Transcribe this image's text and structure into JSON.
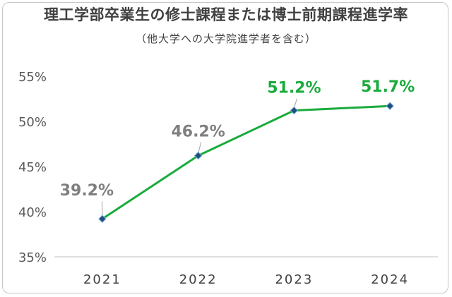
{
  "chart_data": {
    "type": "line",
    "title": "理工学部卒業生の修士課程または博士前期課程進学率",
    "subtitle": "（他大学への大学院進学者を含む）",
    "categories": [
      "2021",
      "2022",
      "2023",
      "2024"
    ],
    "series": [
      {
        "values": [
          39.2,
          46.2,
          51.2,
          51.7
        ]
      }
    ],
    "data_labels": [
      "39.2%",
      "46.2%",
      "51.2%",
      "51.7%"
    ],
    "y_ticks": [
      "35%",
      "40%",
      "45%",
      "50%",
      "55%"
    ],
    "ylim": [
      35,
      55
    ],
    "grid": false,
    "colors": {
      "line": "#1aab3c",
      "marker": "#1f4e79",
      "label_gray": "#7f7f7f",
      "label_green": "#1aab3c",
      "axis": "#bfbfbf"
    }
  }
}
